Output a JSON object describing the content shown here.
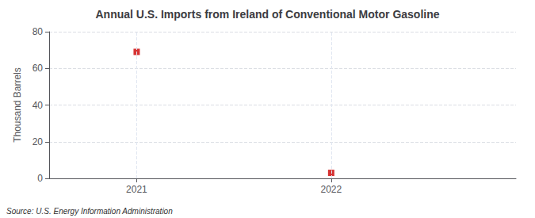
{
  "chart_data": {
    "type": "scatter",
    "title": "Annual U.S. Imports from Ireland of Conventional Motor Gasoline",
    "ylabel": "Thousand Barrels",
    "annotations": [
      "Source: U.S. Energy Information Administration"
    ],
    "x": [
      2021,
      2022
    ],
    "values": [
      69,
      3
    ],
    "color": "#cc0000",
    "marker": "square",
    "xlim": [
      2020.55,
      2022.95
    ],
    "xticks": [
      2021,
      2022
    ],
    "ylim": [
      0,
      80
    ],
    "yticks": [
      0,
      20,
      40,
      60,
      80
    ],
    "grid": true
  }
}
